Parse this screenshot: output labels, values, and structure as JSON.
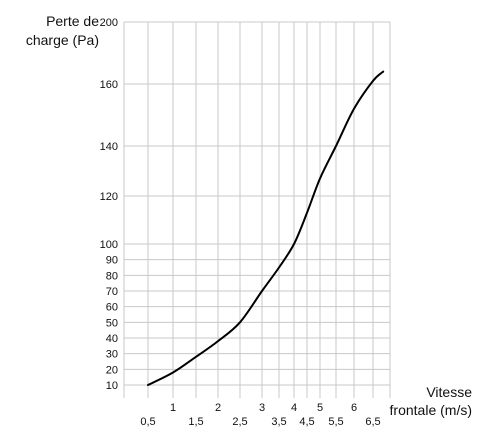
{
  "chart_data": {
    "type": "line",
    "title": "",
    "ylabel": [
      "Perte de",
      "charge (Pa)"
    ],
    "xlabel": [
      "Vitesse",
      "frontale (m/s)"
    ],
    "grid": true,
    "legend": "none",
    "y_ticks": [
      10,
      20,
      30,
      40,
      50,
      60,
      70,
      80,
      90,
      100,
      120,
      140,
      160,
      200
    ],
    "y_tick_labels": [
      "10",
      "20",
      "30",
      "40",
      "50",
      "60",
      "70",
      "80",
      "90",
      "100",
      "120",
      "140",
      "160",
      "200"
    ],
    "x_ticks_lower": [
      0.5,
      1.5,
      2.5,
      3.5,
      4.5,
      5.5,
      6.5
    ],
    "x_tick_labels_lower": [
      "0,5",
      "1,5",
      "2,5",
      "3,5",
      "4,5",
      "5,5",
      "6,5"
    ],
    "x_ticks_upper": [
      1,
      2,
      3,
      4,
      5,
      6
    ],
    "x_tick_labels_upper": [
      "1",
      "2",
      "3",
      "4",
      "5",
      "6"
    ],
    "series": [
      {
        "color": "#000000",
        "x": [
          0.5,
          1.0,
          1.5,
          2.0,
          2.5,
          3.0,
          3.5,
          4.0,
          4.5,
          5.0,
          5.5,
          6.0,
          6.5,
          6.8
        ],
        "y": [
          10,
          18,
          28,
          38,
          50,
          70,
          85,
          100,
          113,
          127,
          140,
          152,
          162,
          168
        ]
      }
    ]
  }
}
